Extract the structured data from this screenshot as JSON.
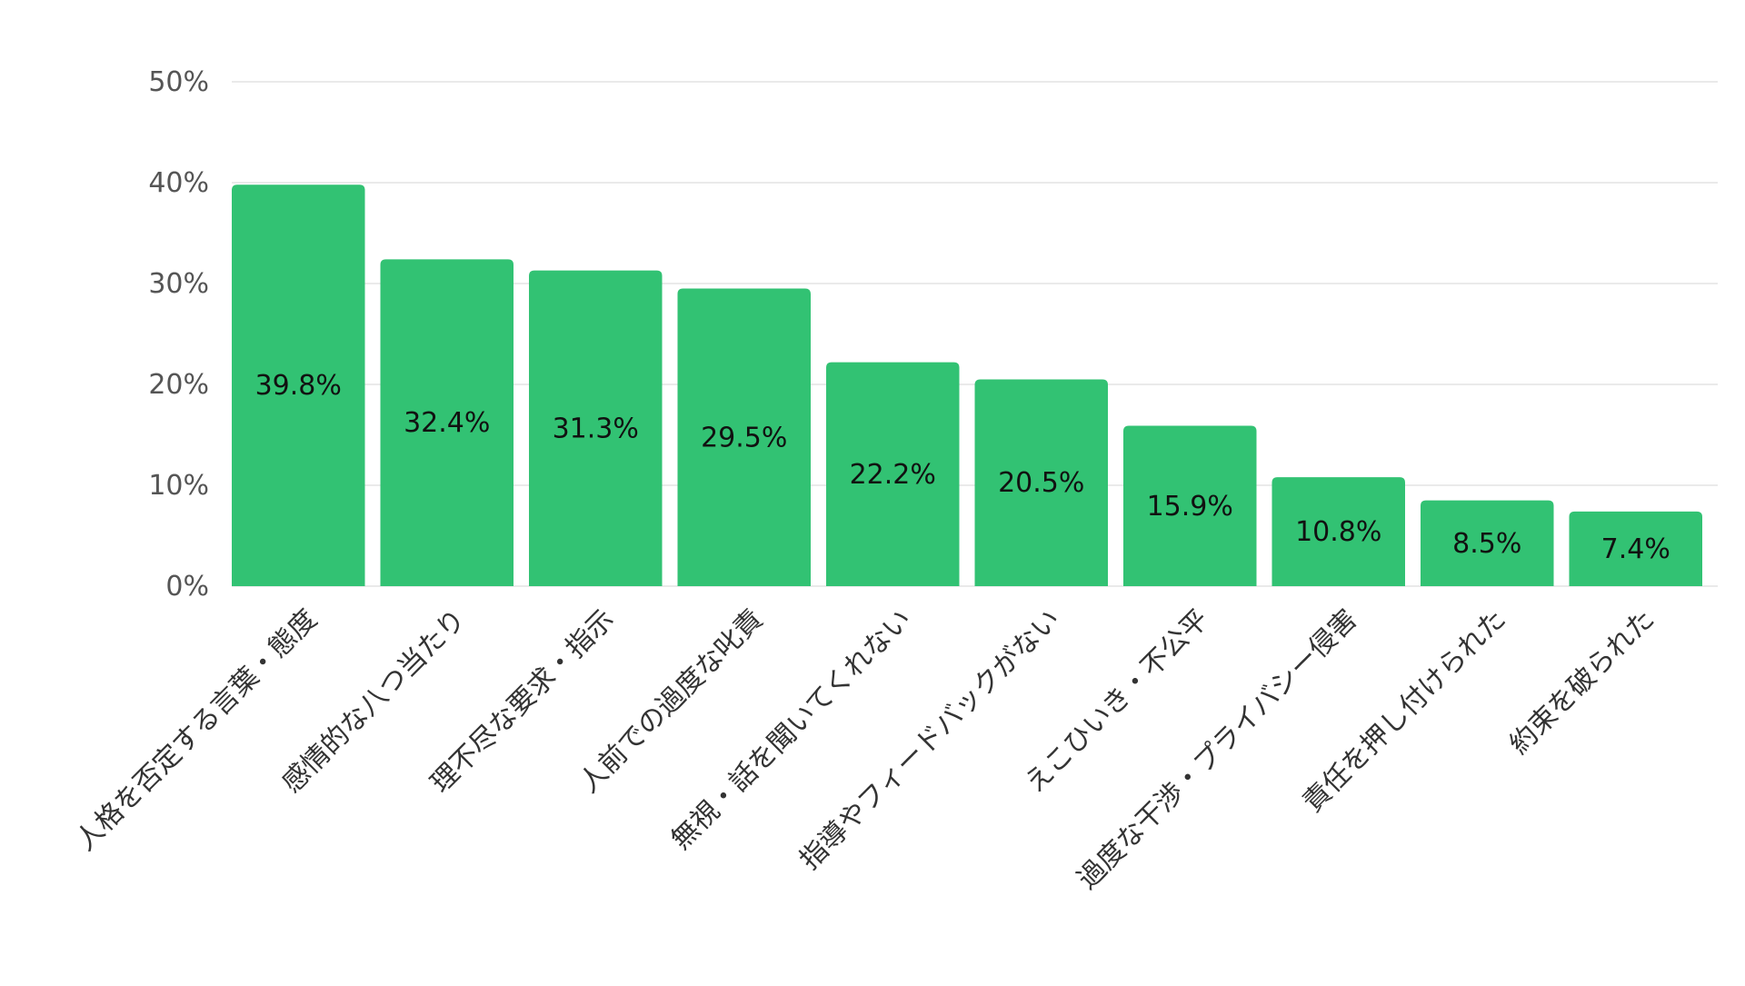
{
  "chart_data": {
    "type": "bar",
    "title": "",
    "xlabel": "",
    "ylabel": "",
    "ylim": [
      0,
      50
    ],
    "yticks": [
      0,
      10,
      20,
      30,
      40,
      50
    ],
    "ytick_format": "{v}%",
    "grid": true,
    "legend": "none",
    "bar_color": "#32c273",
    "categories": [
      "人格を否定する言葉・態度",
      "感情的な八つ当たり",
      "理不尽な要求・指示",
      "人前での過度な叱責",
      "無視・話を聞いてくれない",
      "指導やフィードバックがない",
      "えこひいき・不公平",
      "過度な干渉・プライバシー侵害",
      "責任を押し付けられた",
      "約束を破られた"
    ],
    "values": [
      39.8,
      32.4,
      31.3,
      29.5,
      22.2,
      20.5,
      15.9,
      10.8,
      8.5,
      7.4
    ],
    "value_labels": [
      "39.8%",
      "32.4%",
      "31.3%",
      "29.5%",
      "22.2%",
      "20.5%",
      "15.9%",
      "10.8%",
      "8.5%",
      "7.4%"
    ]
  }
}
